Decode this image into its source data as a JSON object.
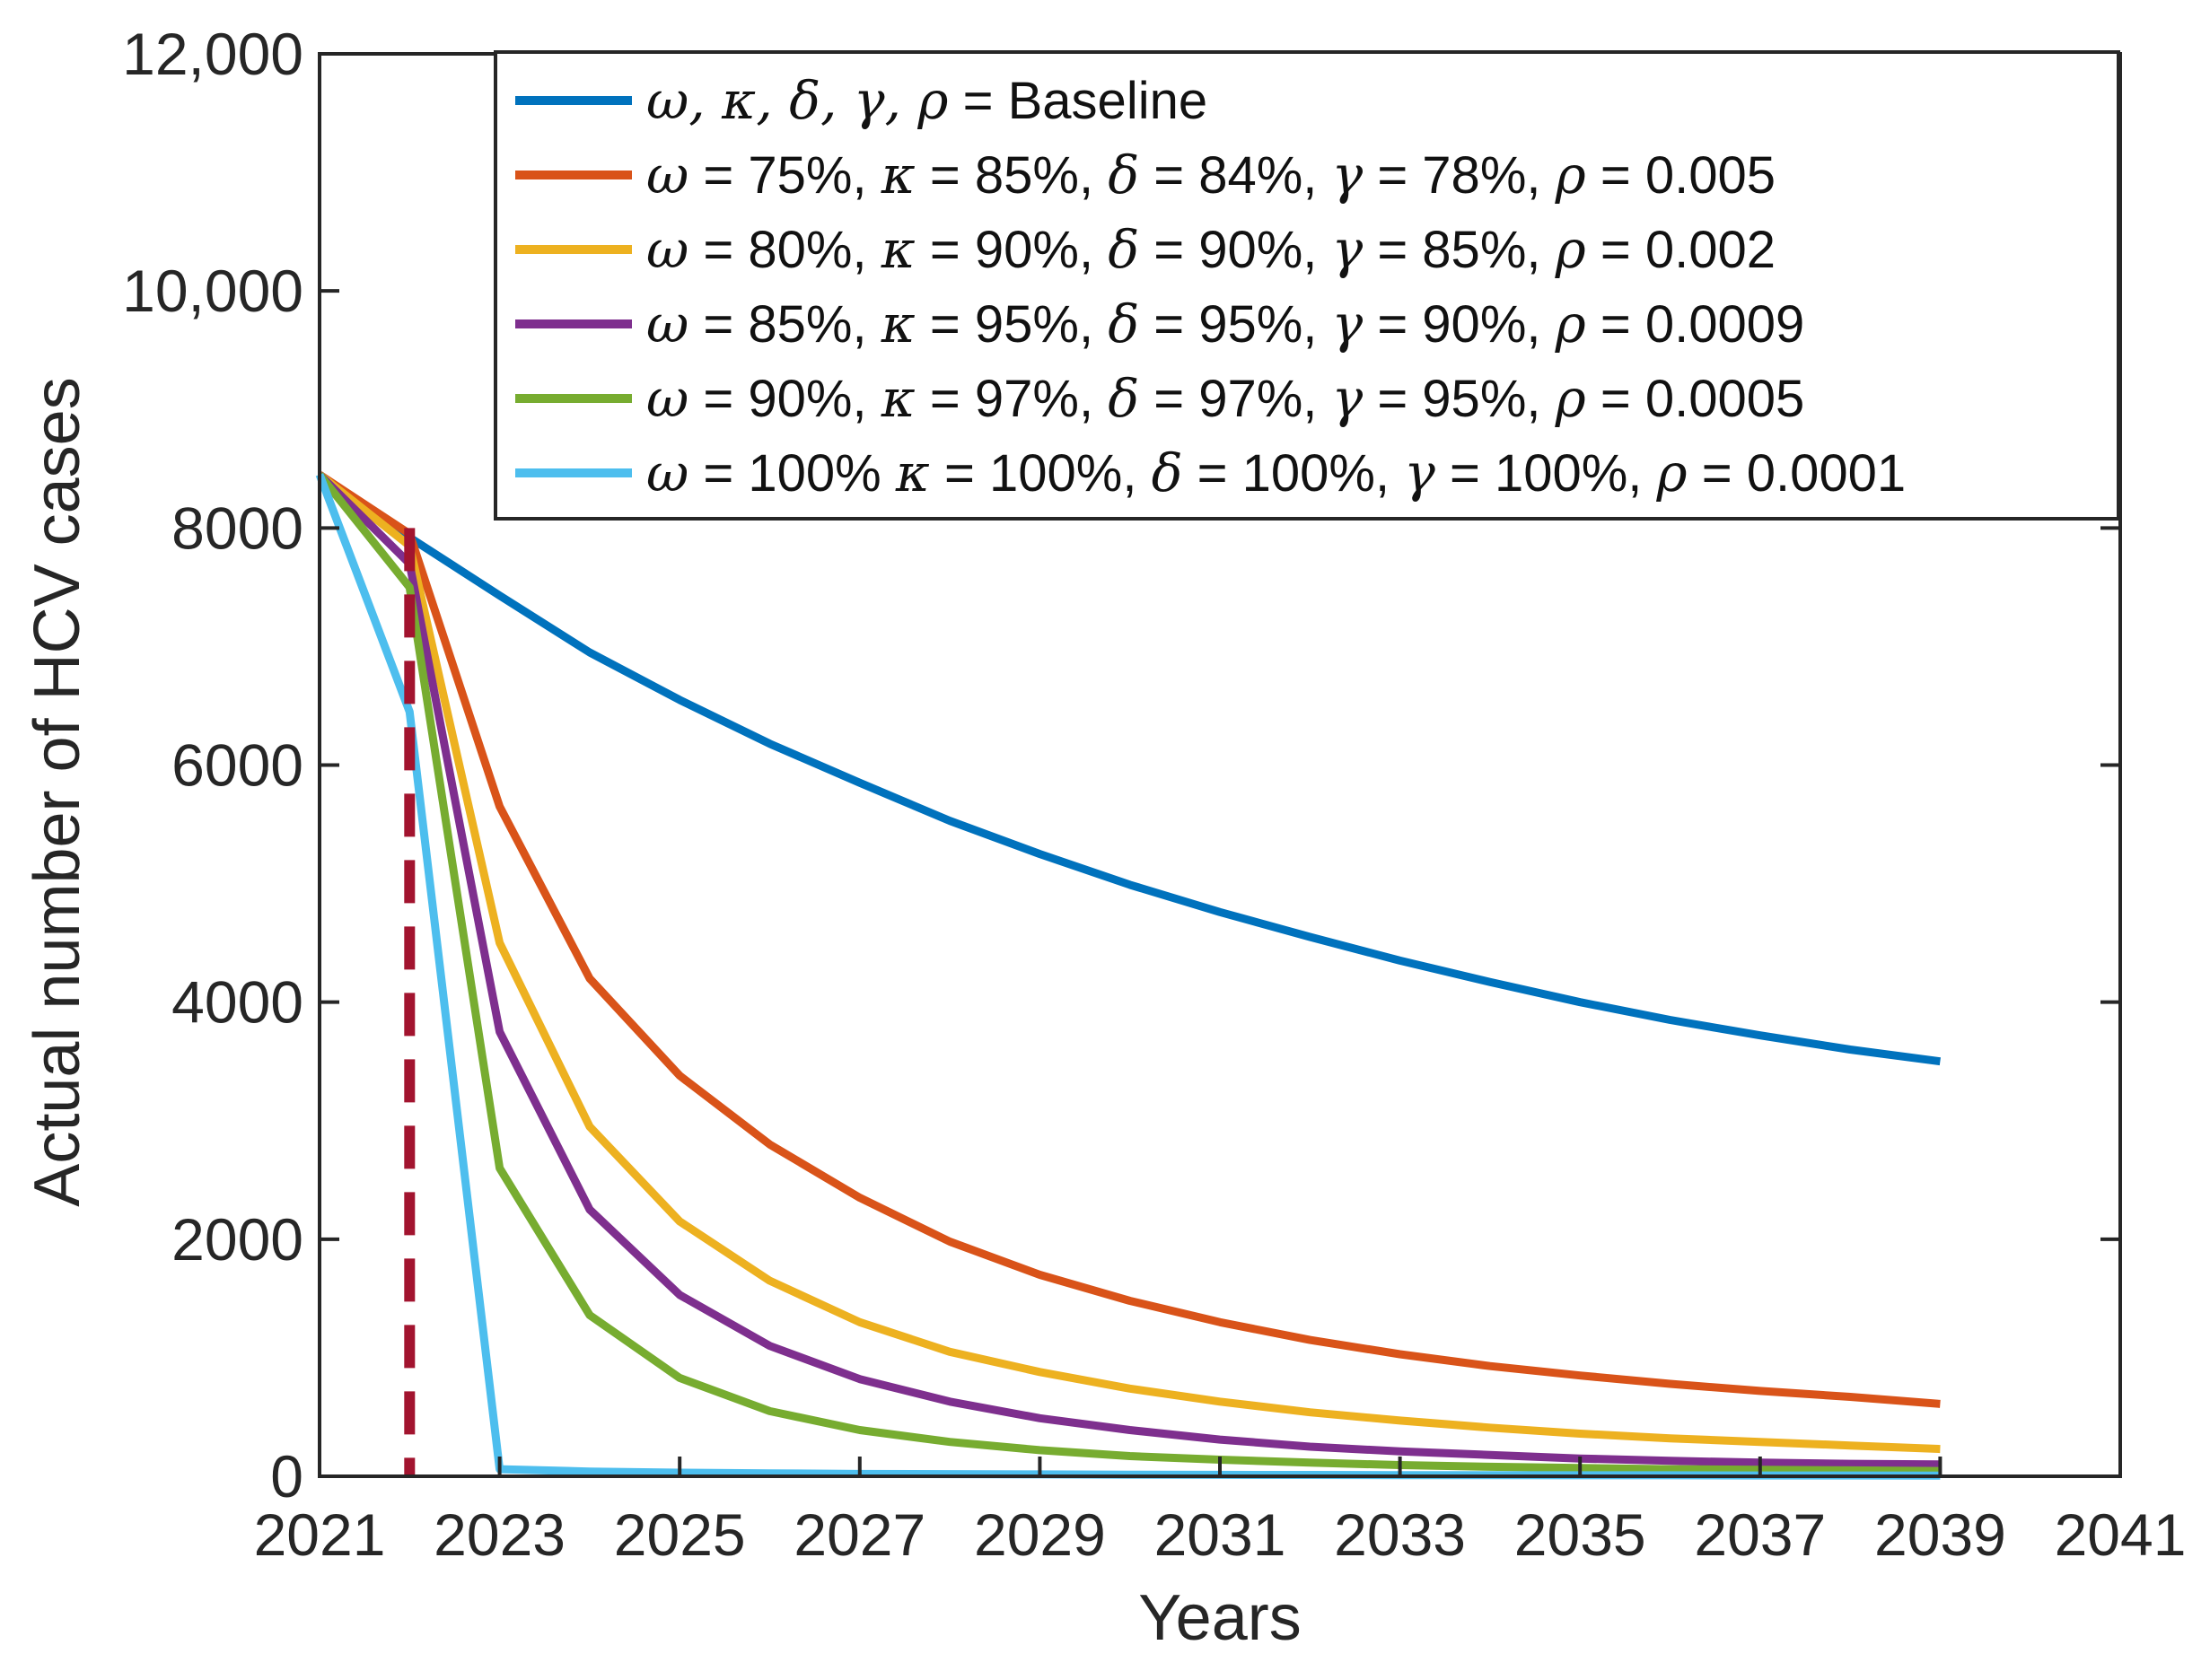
{
  "chart_data": {
    "type": "line",
    "title": "",
    "xlabel": "Years",
    "ylabel": "Actual number of HCV cases",
    "xlim": [
      2021,
      2041
    ],
    "ylim": [
      0,
      12000
    ],
    "xticks": [
      "2021",
      "2023",
      "2025",
      "2027",
      "2029",
      "2031",
      "2033",
      "2035",
      "2037",
      "2039",
      "2041"
    ],
    "yticks": [
      "0",
      "2000",
      "4000",
      "6000",
      "8000",
      "10,000",
      "12,000"
    ],
    "grid": false,
    "legend_position": "top-right",
    "intervention_line": {
      "x": 2022,
      "y_top": 8000,
      "y_bottom": 0,
      "color": "#A2142F",
      "style": "dashed"
    },
    "x": [
      2021,
      2022,
      2023,
      2024,
      2025,
      2026,
      2027,
      2028,
      2029,
      2030,
      2031,
      2032,
      2033,
      2034,
      2035,
      2036,
      2037,
      2038,
      2039
    ],
    "series": [
      {
        "legend": [
          [
            "ω, κ, δ, γ, ρ",
            true
          ],
          [
            " = Baseline",
            false
          ]
        ],
        "name": "ω, κ, δ, γ, ρ = Baseline",
        "color": "#0072BD",
        "values": [
          8450,
          7920,
          7430,
          6950,
          6550,
          6180,
          5850,
          5530,
          5250,
          4990,
          4760,
          4550,
          4350,
          4170,
          4000,
          3850,
          3720,
          3600,
          3500
        ]
      },
      {
        "legend": [
          [
            "ω",
            true
          ],
          [
            " = 75%, ",
            false
          ],
          [
            "κ",
            true
          ],
          [
            " = 85%, ",
            false
          ],
          [
            "δ",
            true
          ],
          [
            " = 84%, ",
            false
          ],
          [
            "γ",
            true
          ],
          [
            " = 78%, ",
            false
          ],
          [
            "ρ",
            true
          ],
          [
            " = 0.005",
            false
          ]
        ],
        "name": "ω = 75%, κ = 85%, δ = 84%, γ = 78%, ρ = 0.005",
        "color": "#D95319",
        "values": [
          8450,
          7950,
          5650,
          4200,
          3380,
          2800,
          2350,
          1980,
          1700,
          1480,
          1300,
          1150,
          1030,
          930,
          850,
          780,
          720,
          670,
          610
        ]
      },
      {
        "legend": [
          [
            "ω",
            true
          ],
          [
            " = 80%, ",
            false
          ],
          [
            "κ",
            true
          ],
          [
            " = 90%, ",
            false
          ],
          [
            "δ",
            true
          ],
          [
            " = 90%, ",
            false
          ],
          [
            "γ",
            true
          ],
          [
            " = 85%, ",
            false
          ],
          [
            "ρ",
            true
          ],
          [
            " = 0.002",
            false
          ]
        ],
        "name": "ω = 80%, κ = 90%, δ = 90%, γ = 85%, ρ = 0.002",
        "color": "#EDB120",
        "values": [
          8450,
          7850,
          4500,
          2950,
          2150,
          1650,
          1300,
          1050,
          880,
          740,
          630,
          540,
          470,
          410,
          360,
          320,
          290,
          260,
          230
        ]
      },
      {
        "legend": [
          [
            "ω",
            true
          ],
          [
            " = 85%, ",
            false
          ],
          [
            "κ",
            true
          ],
          [
            " = 95%, ",
            false
          ],
          [
            "δ",
            true
          ],
          [
            " = 95%, ",
            false
          ],
          [
            "γ",
            true
          ],
          [
            " = 90%, ",
            false
          ],
          [
            "ρ",
            true
          ],
          [
            " = 0.0009",
            false
          ]
        ],
        "name": "ω = 85%, κ = 95%, δ = 95%, γ = 90%, ρ = 0.0009",
        "color": "#7E2F8E",
        "values": [
          8450,
          7700,
          3750,
          2250,
          1530,
          1100,
          820,
          630,
          490,
          390,
          310,
          250,
          210,
          180,
          150,
          130,
          115,
          105,
          100
        ]
      },
      {
        "legend": [
          [
            "ω",
            true
          ],
          [
            " = 90%, ",
            false
          ],
          [
            "κ",
            true
          ],
          [
            " = 97%, ",
            false
          ],
          [
            "δ",
            true
          ],
          [
            " = 97%, ",
            false
          ],
          [
            "γ",
            true
          ],
          [
            " = 95%, ",
            false
          ],
          [
            "ρ",
            true
          ],
          [
            " = 0.0005",
            false
          ]
        ],
        "name": "ω = 90%, κ = 97%, δ = 97%, γ = 95%, ρ = 0.0005",
        "color": "#77AC30",
        "values": [
          8450,
          7500,
          2600,
          1360,
          830,
          550,
          390,
          290,
          220,
          170,
          140,
          115,
          95,
          80,
          70,
          60,
          55,
          50,
          45
        ]
      },
      {
        "legend": [
          [
            "ω",
            true
          ],
          [
            " = 100% ",
            false
          ],
          [
            "κ",
            true
          ],
          [
            " = 100%, ",
            false
          ],
          [
            "δ",
            true
          ],
          [
            " = 100%, ",
            false
          ],
          [
            "γ",
            true
          ],
          [
            " = 100%, ",
            false
          ],
          [
            "ρ",
            true
          ],
          [
            " = 0.0001",
            false
          ]
        ],
        "name": "ω = 100% κ = 100%, δ = 100%, γ = 100%, ρ = 0.0001",
        "color": "#4DBEEE",
        "values": [
          8450,
          6450,
          60,
          40,
          30,
          25,
          20,
          18,
          16,
          14,
          12,
          11,
          10,
          9,
          8,
          8,
          7,
          7,
          6
        ]
      }
    ]
  }
}
